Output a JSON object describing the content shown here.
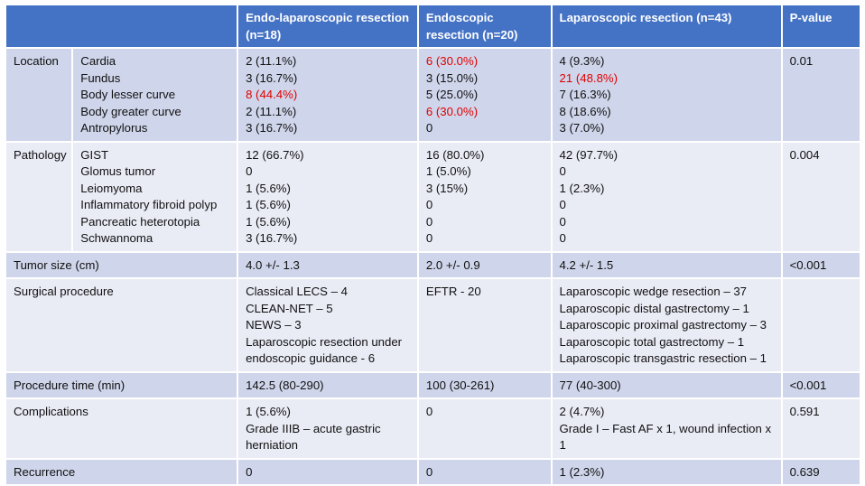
{
  "header": [
    "",
    "Endo-laparoscopic resection (n=18)",
    "Endoscopic resection (n=20)",
    "Laparoscopic resection (n=43)",
    "P-value"
  ],
  "colors": {
    "header_bg": "#4472c4",
    "row_light": "#e9ebf5",
    "row_dark": "#cfd5ea",
    "highlight": "#e00000"
  },
  "location": {
    "label": "Location",
    "subs": [
      "Cardia",
      "Fundus",
      "Body lesser curve",
      "Body greater curve",
      "Antropylorus"
    ],
    "endo_lap": [
      "2 (11.1%)",
      "3 (16.7%)",
      "8 (44.4%)",
      "2 (11.1%)",
      "3 (16.7%)"
    ],
    "endo": [
      "6 (30.0%)",
      "3 (15.0%)",
      "5 (25.0%)",
      "6 (30.0%)",
      "0"
    ],
    "lap": [
      "4 (9.3%)",
      "21 (48.8%)",
      "7 (16.3%)",
      "8 (18.6%)",
      "3 (7.0%)"
    ],
    "p": "0.01"
  },
  "pathology": {
    "label": "Pathology",
    "subs": [
      "GIST",
      "Glomus tumor",
      "Leiomyoma",
      "Inflammatory fibroid polyp",
      "Pancreatic heterotopia",
      "Schwannoma"
    ],
    "endo_lap": [
      "12 (66.7%)",
      "0",
      "1 (5.6%)",
      "1 (5.6%)",
      "1 (5.6%)",
      "3 (16.7%)"
    ],
    "endo": [
      "16 (80.0%)",
      "1 (5.0%)",
      "3 (15%)",
      "0",
      "0",
      "0"
    ],
    "lap": [
      "42 (97.7%)",
      "0",
      "1 (2.3%)",
      "0",
      "0",
      "0"
    ],
    "p": "0.004"
  },
  "tumor_size": {
    "label": "Tumor size (cm)",
    "endo_lap": "4.0 +/- 1.3",
    "endo": "2.0 +/- 0.9",
    "lap": "4.2 +/- 1.5",
    "p": "<0.001"
  },
  "surgical": {
    "label": "Surgical procedure",
    "endo_lap": [
      "Classical LECS – 4",
      "CLEAN-NET – 5",
      "NEWS – 3",
      "Laparoscopic resection under endoscopic guidance - 6"
    ],
    "endo": "EFTR - 20",
    "lap": [
      "Laparoscopic wedge resection – 37",
      "Laparoscopic distal gastrectomy – 1",
      "Laparoscopic proximal gastrectomy – 3",
      "Laparoscopic total gastrectomy – 1",
      "Laparoscopic transgastric resection – 1"
    ],
    "p": ""
  },
  "procedure_time": {
    "label": "Procedure time (min)",
    "endo_lap": "142.5 (80-290)",
    "endo": "100 (30-261)",
    "lap": "77 (40-300)",
    "p": "<0.001"
  },
  "complications": {
    "label": "Complications",
    "endo_lap": [
      "1 (5.6%)",
      "Grade IIIB – acute gastric herniation"
    ],
    "endo": "0",
    "lap": [
      "2 (4.7%)",
      "Grade I – Fast AF x 1, wound infection x 1"
    ],
    "p": "0.591"
  },
  "recurrence": {
    "label": "Recurrence",
    "endo_lap": "0",
    "endo": "0",
    "lap": "1 (2.3%)",
    "p": "0.639"
  }
}
